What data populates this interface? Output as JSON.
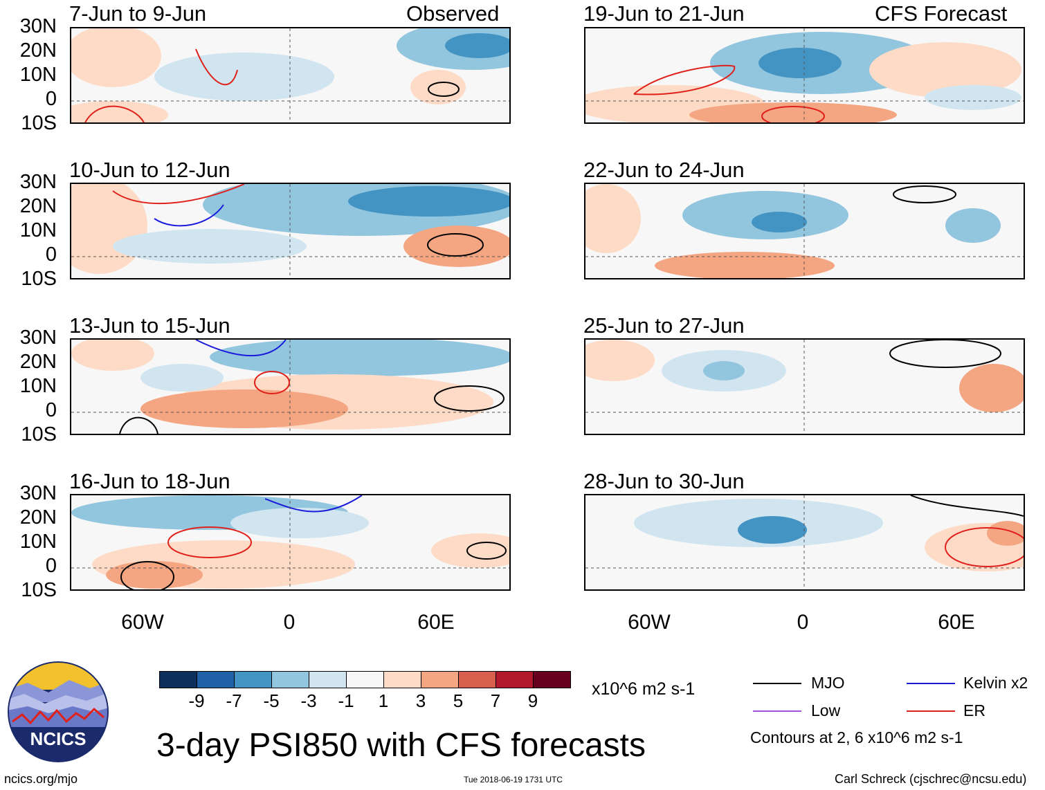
{
  "header": {
    "observed": "Observed",
    "forecast": "CFS Forecast"
  },
  "lat_labels": [
    "30N",
    "20N",
    "10N",
    "0",
    "10S"
  ],
  "lon_labels": [
    "60W",
    "0",
    "60E"
  ],
  "panels": [
    {
      "title": "7-Jun to 9-Jun",
      "group": "observed"
    },
    {
      "title": "10-Jun to 12-Jun",
      "group": "observed"
    },
    {
      "title": "13-Jun to 15-Jun",
      "group": "observed"
    },
    {
      "title": "16-Jun to 18-Jun",
      "group": "observed"
    },
    {
      "title": "19-Jun to 21-Jun",
      "group": "forecast"
    },
    {
      "title": "22-Jun to 24-Jun",
      "group": "forecast"
    },
    {
      "title": "25-Jun to 27-Jun",
      "group": "forecast"
    },
    {
      "title": "28-Jun to 30-Jun",
      "group": "forecast"
    }
  ],
  "colorbar": {
    "colors": [
      "#0d2f5c",
      "#1f62a6",
      "#4393c3",
      "#92c5de",
      "#d1e5f0",
      "#f7f7f7",
      "#fddbc7",
      "#f4a582",
      "#d6604d",
      "#b2182b",
      "#67001f"
    ],
    "tick_labels": [
      "-9",
      "-7",
      "-5",
      "-3",
      "-1",
      "1",
      "3",
      "5",
      "7",
      "9"
    ],
    "units": "x10^6 m2 s-1"
  },
  "legend": {
    "items": [
      {
        "label": "MJO",
        "color": "#000000"
      },
      {
        "label": "Kelvin x2",
        "color": "#1a1adc"
      },
      {
        "label": "Low",
        "color": "#a050e0"
      },
      {
        "label": "ER",
        "color": "#e0201a"
      }
    ],
    "contour_note": "Contours at 2, 6 x10^6 m2 s-1"
  },
  "main_title": "3-day PSI850 with CFS forecasts",
  "logo_text": "NCICS",
  "footer": {
    "url": "ncics.org/mjo",
    "timestamp": "Tue 2018-06-19 1731 UTC",
    "author": "Carl Schreck (cjschrec@ncsu.edu)"
  }
}
